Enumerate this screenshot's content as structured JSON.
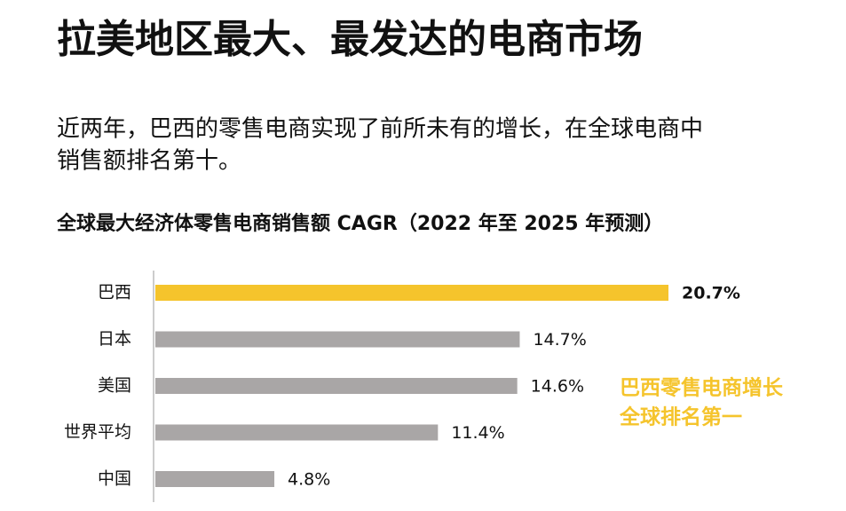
{
  "chart_data": {
    "type": "bar",
    "orientation": "horizontal",
    "title": "拉美地区最大、最发达的电商市场",
    "subtitle": [
      "近两年，巴西的零售电商实现了前所未有的增长，在全球电商中",
      "销售额排名第十。"
    ],
    "chart_title": "全球最大经济体零售电商销售额 CAGR（2022 年至 2025 年预测）",
    "categories": [
      "巴西",
      "日本",
      "美国",
      "世界平均",
      "中国"
    ],
    "values": [
      20.7,
      14.7,
      14.6,
      11.4,
      4.8
    ],
    "value_labels": [
      "20.7%",
      "14.7%",
      "14.6%",
      "11.4%",
      "4.8%"
    ],
    "colors": [
      "#f5c42c",
      "#a9a6a6",
      "#a9a6a6",
      "#a9a6a6",
      "#a9a6a6"
    ],
    "annotation": [
      "巴西零售电商增长",
      "全球排名第一"
    ],
    "annotation_color": "#f5c42c"
  }
}
